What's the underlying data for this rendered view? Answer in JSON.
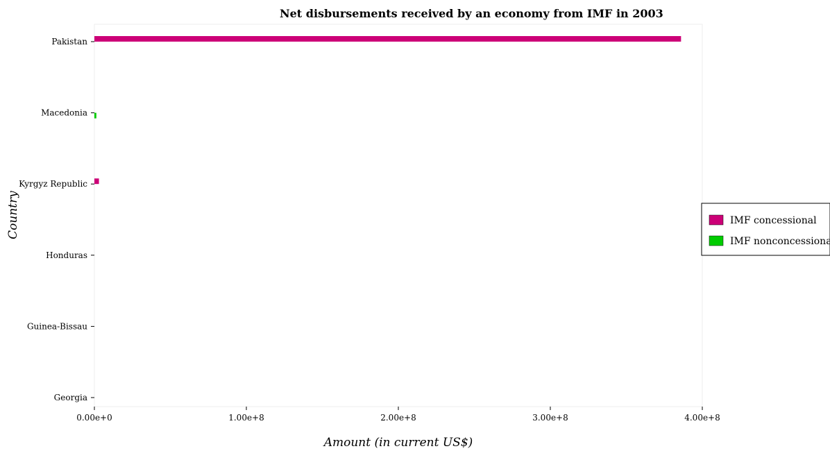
{
  "chart_data": {
    "type": "bar",
    "orientation": "horizontal",
    "title": "Net disbursements received by an economy from IMF in 2003",
    "xlabel": "Amount (in current US$)",
    "ylabel": "Country",
    "categories": [
      "Georgia",
      "Guinea-Bissau",
      "Honduras",
      "Kyrgyz Republic",
      "Macedonia",
      "Pakistan"
    ],
    "xlim": [
      0,
      400000000
    ],
    "xticks": [
      0,
      100000000,
      200000000,
      300000000,
      400000000
    ],
    "xtick_labels": [
      "0.00e+0",
      "1.00e+8",
      "2.00e+8",
      "3.00e+8",
      "4.00e+8"
    ],
    "grid": false,
    "legend_position": "right",
    "series": [
      {
        "name": "IMF concessional",
        "color": "#cc0077",
        "values": [
          0,
          0,
          0,
          3000000,
          0,
          386000000
        ]
      },
      {
        "name": "IMF nonconcessional",
        "color": "#00cc00",
        "values": [
          0,
          0,
          0,
          0,
          1300000,
          0
        ]
      }
    ]
  }
}
